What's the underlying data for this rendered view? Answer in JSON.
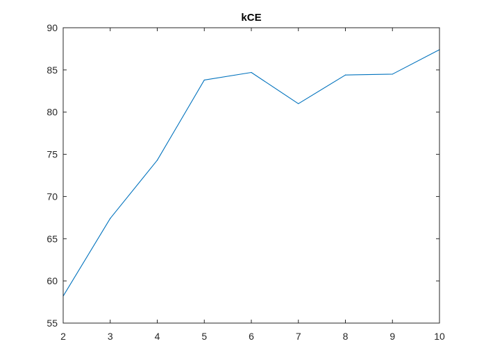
{
  "chart_data": {
    "type": "line",
    "title": "kCE",
    "xlabel": "",
    "ylabel": "",
    "xlim": [
      2,
      10
    ],
    "ylim": [
      55,
      90
    ],
    "x_ticks": [
      2,
      3,
      4,
      5,
      6,
      7,
      8,
      9,
      10
    ],
    "y_ticks": [
      55,
      60,
      65,
      70,
      75,
      80,
      85,
      90
    ],
    "grid": false,
    "series": [
      {
        "x": [
          2,
          3,
          4,
          5,
          6,
          7,
          8,
          9,
          10
        ],
        "values": [
          58.2,
          67.4,
          74.3,
          83.8,
          84.7,
          81.0,
          84.4,
          84.5,
          87.4
        ],
        "color": "#0072BD"
      }
    ]
  }
}
